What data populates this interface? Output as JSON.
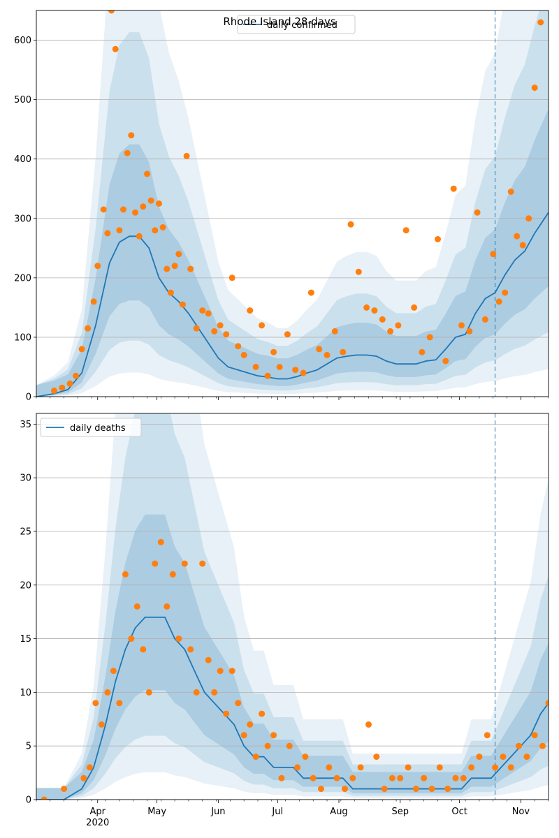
{
  "chart_data": [
    {
      "type": "line",
      "title": "Rhode Island 28 days",
      "legend": {
        "label": "daily confirmed",
        "position": "top-center"
      },
      "ylim": [
        0,
        650
      ],
      "yticks": [
        0,
        100,
        200,
        300,
        400,
        500,
        600
      ],
      "grid": true,
      "xlim_days": [
        "2020-03-01",
        "2020-11-15"
      ],
      "month_ticks": [
        {
          "label": "Apr",
          "date": "2020-04-01",
          "sub": "2020"
        },
        {
          "label": "May",
          "date": "2020-05-01"
        },
        {
          "label": "Jun",
          "date": "2020-06-01"
        },
        {
          "label": "Jul",
          "date": "2020-07-01"
        },
        {
          "label": "Aug",
          "date": "2020-08-01"
        },
        {
          "label": "Sep",
          "date": "2020-09-01"
        },
        {
          "label": "Oct",
          "date": "2020-10-01"
        },
        {
          "label": "Nov",
          "date": "2020-11-01"
        }
      ],
      "forecast_start": "2020-10-19",
      "series": [
        {
          "name": "daily confirmed",
          "color": "#1f77b4",
          "x": [
            "2020-03-01",
            "2020-03-10",
            "2020-03-17",
            "2020-03-24",
            "2020-03-31",
            "2020-04-07",
            "2020-04-12",
            "2020-04-17",
            "2020-04-22",
            "2020-04-27",
            "2020-05-02",
            "2020-05-07",
            "2020-05-12",
            "2020-05-17",
            "2020-05-22",
            "2020-05-27",
            "2020-06-01",
            "2020-06-06",
            "2020-06-11",
            "2020-06-16",
            "2020-06-21",
            "2020-06-26",
            "2020-07-01",
            "2020-07-06",
            "2020-07-11",
            "2020-07-16",
            "2020-07-21",
            "2020-07-26",
            "2020-07-31",
            "2020-08-05",
            "2020-08-10",
            "2020-08-15",
            "2020-08-20",
            "2020-08-25",
            "2020-08-30",
            "2020-09-04",
            "2020-09-09",
            "2020-09-14",
            "2020-09-19",
            "2020-09-24",
            "2020-09-29",
            "2020-10-04",
            "2020-10-09",
            "2020-10-14",
            "2020-10-19",
            "2020-10-24",
            "2020-10-29",
            "2020-11-03",
            "2020-11-08",
            "2020-11-15"
          ],
          "y": [
            0,
            5,
            12,
            40,
            120,
            225,
            260,
            270,
            270,
            250,
            200,
            175,
            160,
            140,
            115,
            90,
            65,
            50,
            45,
            40,
            35,
            33,
            30,
            30,
            34,
            40,
            45,
            55,
            65,
            68,
            70,
            70,
            68,
            60,
            55,
            55,
            55,
            60,
            62,
            80,
            100,
            105,
            140,
            165,
            175,
            205,
            230,
            245,
            275,
            310
          ]
        },
        {
          "name": "",
          "color": "#ff7f0e",
          "x": [
            "2020-03-10",
            "2020-03-14",
            "2020-03-18",
            "2020-03-21",
            "2020-03-24",
            "2020-03-27",
            "2020-03-30",
            "2020-04-01",
            "2020-04-04",
            "2020-04-06",
            "2020-04-08",
            "2020-04-10",
            "2020-04-12",
            "2020-04-14",
            "2020-04-16",
            "2020-04-18",
            "2020-04-20",
            "2020-04-22",
            "2020-04-24",
            "2020-04-26",
            "2020-04-28",
            "2020-04-30",
            "2020-05-02",
            "2020-05-04",
            "2020-05-06",
            "2020-05-08",
            "2020-05-10",
            "2020-05-12",
            "2020-05-14",
            "2020-05-16",
            "2020-05-18",
            "2020-05-21",
            "2020-05-24",
            "2020-05-27",
            "2020-05-30",
            "2020-06-02",
            "2020-06-05",
            "2020-06-08",
            "2020-06-11",
            "2020-06-14",
            "2020-06-17",
            "2020-06-20",
            "2020-06-23",
            "2020-06-26",
            "2020-06-29",
            "2020-07-02",
            "2020-07-06",
            "2020-07-10",
            "2020-07-14",
            "2020-07-18",
            "2020-07-22",
            "2020-07-26",
            "2020-07-30",
            "2020-08-03",
            "2020-08-07",
            "2020-08-11",
            "2020-08-15",
            "2020-08-19",
            "2020-08-23",
            "2020-08-27",
            "2020-08-31",
            "2020-09-04",
            "2020-09-08",
            "2020-09-12",
            "2020-09-16",
            "2020-09-20",
            "2020-09-24",
            "2020-09-28",
            "2020-10-02",
            "2020-10-06",
            "2020-10-10",
            "2020-10-14",
            "2020-10-18",
            "2020-10-21",
            "2020-10-24",
            "2020-10-27",
            "2020-10-30",
            "2020-11-02",
            "2020-11-05",
            "2020-11-08",
            "2020-11-11"
          ],
          "y": [
            10,
            15,
            22,
            35,
            80,
            115,
            160,
            220,
            315,
            275,
            650,
            585,
            280,
            315,
            410,
            440,
            310,
            270,
            320,
            375,
            330,
            280,
            325,
            285,
            215,
            175,
            220,
            240,
            155,
            405,
            215,
            115,
            145,
            140,
            110,
            120,
            105,
            200,
            85,
            70,
            145,
            50,
            120,
            35,
            75,
            50,
            105,
            45,
            40,
            175,
            80,
            70,
            110,
            75,
            290,
            210,
            150,
            145,
            130,
            110,
            120,
            280,
            150,
            75,
            100,
            265,
            60,
            350,
            120,
            110,
            310,
            130,
            240,
            160,
            175,
            345,
            270,
            255,
            300,
            520,
            630
          ]
        }
      ]
    },
    {
      "type": "line",
      "legend": {
        "label": "daily deaths",
        "position": "top-left"
      },
      "ylim": [
        0,
        36
      ],
      "yticks": [
        0,
        5,
        10,
        15,
        20,
        25,
        30,
        35
      ],
      "grid": true,
      "series": [
        {
          "name": "daily deaths",
          "color": "#1f77b4",
          "x": [
            "2020-03-01",
            "2020-03-15",
            "2020-03-24",
            "2020-03-30",
            "2020-04-05",
            "2020-04-10",
            "2020-04-15",
            "2020-04-20",
            "2020-04-25",
            "2020-04-30",
            "2020-05-05",
            "2020-05-10",
            "2020-05-15",
            "2020-05-20",
            "2020-05-25",
            "2020-05-30",
            "2020-06-04",
            "2020-06-09",
            "2020-06-14",
            "2020-06-19",
            "2020-06-24",
            "2020-06-29",
            "2020-07-04",
            "2020-07-09",
            "2020-07-14",
            "2020-07-19",
            "2020-07-24",
            "2020-07-29",
            "2020-08-03",
            "2020-08-08",
            "2020-08-13",
            "2020-08-18",
            "2020-08-23",
            "2020-08-28",
            "2020-09-02",
            "2020-09-07",
            "2020-09-12",
            "2020-09-17",
            "2020-09-22",
            "2020-09-27",
            "2020-10-02",
            "2020-10-07",
            "2020-10-12",
            "2020-10-17",
            "2020-10-22",
            "2020-10-27",
            "2020-11-01",
            "2020-11-06",
            "2020-11-11",
            "2020-11-15"
          ],
          "y": [
            0,
            0,
            1,
            3,
            7,
            11,
            14,
            16,
            17,
            17,
            17,
            15,
            14,
            12,
            10,
            9,
            8,
            7,
            5,
            4,
            4,
            3,
            3,
            3,
            2,
            2,
            2,
            2,
            2,
            1,
            1,
            1,
            1,
            1,
            1,
            1,
            1,
            1,
            1,
            1,
            1,
            2,
            2,
            2,
            3,
            4,
            5,
            6,
            8,
            9
          ]
        },
        {
          "name": "",
          "color": "#ff7f0e",
          "x": [
            "2020-03-05",
            "2020-03-15",
            "2020-03-25",
            "2020-03-28",
            "2020-03-31",
            "2020-04-03",
            "2020-04-06",
            "2020-04-09",
            "2020-04-12",
            "2020-04-15",
            "2020-04-18",
            "2020-04-21",
            "2020-04-24",
            "2020-04-27",
            "2020-04-30",
            "2020-05-03",
            "2020-05-06",
            "2020-05-09",
            "2020-05-12",
            "2020-05-15",
            "2020-05-18",
            "2020-05-21",
            "2020-05-24",
            "2020-05-27",
            "2020-05-30",
            "2020-06-02",
            "2020-06-05",
            "2020-06-08",
            "2020-06-11",
            "2020-06-14",
            "2020-06-17",
            "2020-06-20",
            "2020-06-23",
            "2020-06-26",
            "2020-06-29",
            "2020-07-03",
            "2020-07-07",
            "2020-07-11",
            "2020-07-15",
            "2020-07-19",
            "2020-07-23",
            "2020-07-27",
            "2020-07-31",
            "2020-08-04",
            "2020-08-08",
            "2020-08-12",
            "2020-08-16",
            "2020-08-20",
            "2020-08-24",
            "2020-08-28",
            "2020-09-01",
            "2020-09-05",
            "2020-09-09",
            "2020-09-13",
            "2020-09-17",
            "2020-09-21",
            "2020-09-25",
            "2020-09-29",
            "2020-10-03",
            "2020-10-07",
            "2020-10-11",
            "2020-10-15",
            "2020-10-19",
            "2020-10-23",
            "2020-10-27",
            "2020-10-31",
            "2020-11-04",
            "2020-11-08",
            "2020-11-12",
            "2020-11-15"
          ],
          "y": [
            0,
            1,
            2,
            3,
            9,
            7,
            10,
            12,
            9,
            21,
            15,
            18,
            14,
            10,
            22,
            24,
            18,
            21,
            15,
            22,
            14,
            10,
            22,
            13,
            10,
            12,
            8,
            12,
            9,
            6,
            7,
            4,
            8,
            5,
            6,
            2,
            5,
            3,
            4,
            2,
            1,
            3,
            2,
            1,
            2,
            3,
            7,
            4,
            1,
            2,
            2,
            3,
            1,
            2,
            1,
            3,
            1,
            2,
            2,
            3,
            4,
            6,
            3,
            4,
            3,
            5,
            4,
            6,
            5,
            9
          ]
        }
      ]
    }
  ]
}
